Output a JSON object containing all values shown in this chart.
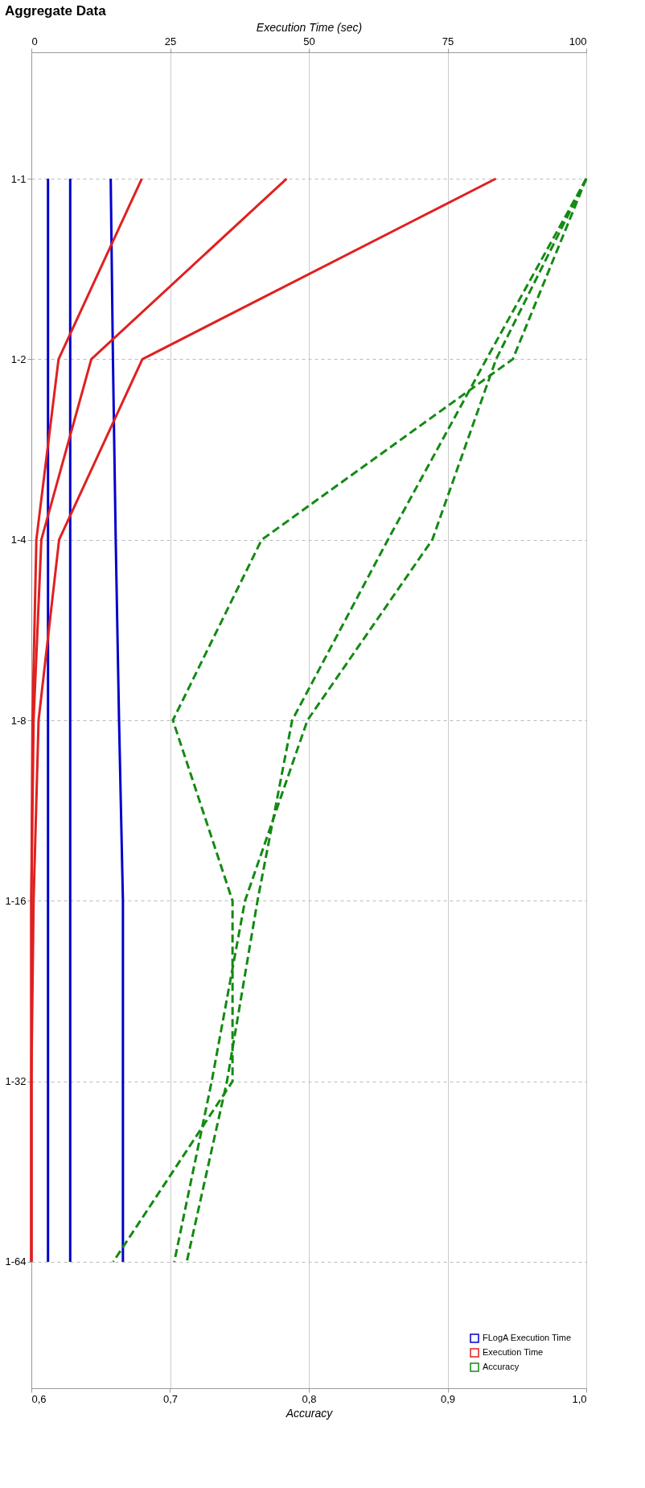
{
  "chart_data": {
    "type": "line",
    "orientation": "horizontal",
    "title": "Aggregate Data",
    "categories": [
      "1-1",
      "1-2",
      "1-4",
      "1-8",
      "1-16",
      "1-32",
      "1-64"
    ],
    "x2label": "Execution Time (sec)",
    "xlabel": "Accuracy",
    "x2lim": [
      0,
      100
    ],
    "x2ticks": [
      0,
      25,
      50,
      75,
      100
    ],
    "xlim": [
      0.6,
      1.0
    ],
    "xticks": [
      {
        "value": 0.6,
        "label": "0,6"
      },
      {
        "value": 0.7,
        "label": "0,7"
      },
      {
        "value": 0.8,
        "label": "0,8"
      },
      {
        "value": 0.9,
        "label": "0,9"
      },
      {
        "value": 1.0,
        "label": "1,0"
      }
    ],
    "grid": true,
    "legend": "bottom right",
    "marker": "none",
    "series": [
      {
        "name": "FLogA Execution Time",
        "color": "#0000cc",
        "line_style": "solid",
        "axis": "x2",
        "values": [
          3,
          3,
          3,
          3,
          3,
          3,
          3
        ]
      },
      {
        "color": "#0000cc",
        "line_style": "solid",
        "axis": "x2",
        "values": [
          7,
          7,
          7,
          7,
          7,
          7,
          7
        ]
      },
      {
        "color": "#0000cc",
        "line_style": "solid",
        "axis": "x2",
        "values": [
          14.3,
          14.7,
          15.2,
          15.8,
          16.5,
          16.5,
          16.5
        ]
      },
      {
        "name": "Execution Time",
        "color": "#e02020",
        "line_style": "solid",
        "axis": "x2",
        "values": [
          19.9,
          4.9,
          0.9,
          0.2,
          0,
          0,
          0
        ]
      },
      {
        "color": "#e02020",
        "line_style": "solid",
        "axis": "x2",
        "values": [
          46,
          10.8,
          1.8,
          0.4,
          0,
          0,
          0
        ]
      },
      {
        "color": "#e02020",
        "line_style": "solid",
        "axis": "x2",
        "values": [
          83.7,
          20,
          5,
          1.3,
          0.4,
          0,
          0
        ]
      },
      {
        "name": "Accuracy",
        "color": "#138a13",
        "line_style": "dashed",
        "values": [
          1.0,
          0.947,
          0.766,
          0.702,
          0.745,
          0.745,
          0.659
        ]
      },
      {
        "color": "#138a13",
        "line_style": "dashed",
        "values": [
          1.0,
          0.928,
          0.857,
          0.788,
          0.763,
          0.741,
          0.712
        ]
      },
      {
        "color": "#138a13",
        "line_style": "dashed",
        "values": [
          1.0,
          0.935,
          0.889,
          0.799,
          0.754,
          0.73,
          0.703
        ]
      }
    ]
  }
}
